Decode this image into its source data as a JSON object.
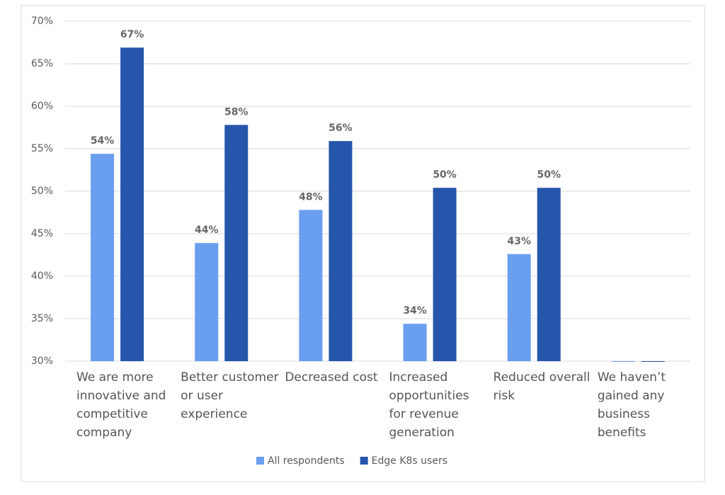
{
  "chart_data": {
    "type": "bar",
    "categories": [
      "We are more innovative and competitive company",
      "Better customer or user experience",
      "Decreased cost",
      "Increased opportunities for revenue generation",
      "Reduced overall risk",
      "We haven’t gained any business benefits"
    ],
    "series": [
      {
        "name": "All respondents",
        "color": "#6a9eef",
        "values": [
          54.4,
          43.9,
          47.8,
          34.4,
          42.6,
          30
        ],
        "value_labels": [
          "54%",
          "44%",
          "48%",
          "34%",
          "43%",
          null
        ]
      },
      {
        "name": "Edge K8s users",
        "color": "#2556ab",
        "values": [
          66.9,
          57.8,
          55.9,
          50.4,
          50.4,
          30
        ],
        "value_labels": [
          "67%",
          "58%",
          "56%",
          "50%",
          "50%",
          null
        ]
      }
    ],
    "ylim": [
      30,
      70
    ],
    "yticks": [
      {
        "value": 30,
        "label": "30%"
      },
      {
        "value": 35,
        "label": "35%"
      },
      {
        "value": 40,
        "label": "40%"
      },
      {
        "value": 45,
        "label": "45%"
      },
      {
        "value": 50,
        "label": "50%"
      },
      {
        "value": 55,
        "label": "55%"
      },
      {
        "value": 60,
        "label": "60%"
      },
      {
        "value": 65,
        "label": "65%"
      },
      {
        "value": 70,
        "label": "70%"
      }
    ],
    "grid": true,
    "legend": "bottom"
  }
}
